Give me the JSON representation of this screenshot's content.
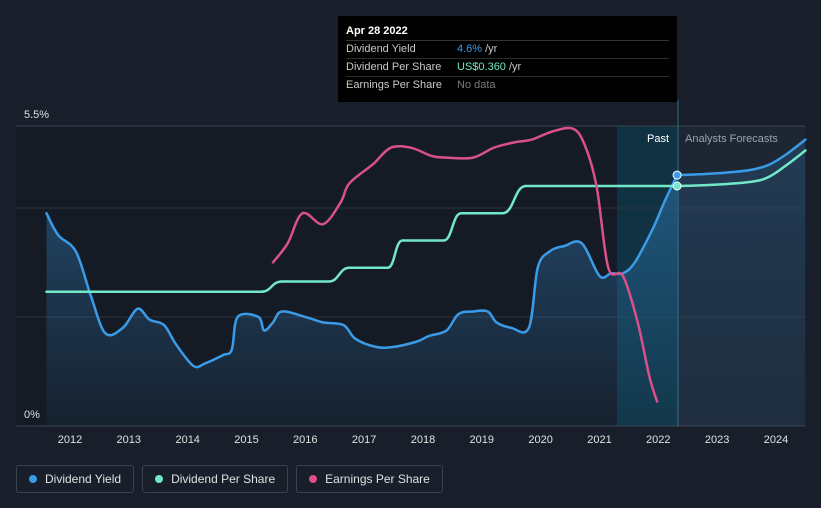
{
  "tooltip": {
    "date": "Apr 28 2022",
    "rows": [
      {
        "label": "Dividend Yield",
        "value": "4.6%",
        "unit": "/yr"
      },
      {
        "label": "Dividend Per Share",
        "value": "US$0.360",
        "unit": "/yr"
      },
      {
        "label": "Earnings Per Share",
        "value": "No data",
        "unit": ""
      }
    ]
  },
  "regions": {
    "past": "Past",
    "forecast": "Analysts Forecasts"
  },
  "legend": [
    {
      "label": "Dividend Yield",
      "color": "#3a9be8"
    },
    {
      "label": "Dividend Per Share",
      "color": "#72e8c9"
    },
    {
      "label": "Earnings Per Share",
      "color": "#d9508a"
    }
  ],
  "chart_data": {
    "type": "line",
    "y_tick_labels": [
      "5.5%",
      "0%"
    ],
    "ylim": [
      0,
      5.5
    ],
    "xlim": [
      2011.6,
      2024.5
    ],
    "x_tick_labels": [
      "2012",
      "2013",
      "2014",
      "2015",
      "2016",
      "2017",
      "2018",
      "2019",
      "2020",
      "2021",
      "2022",
      "2023",
      "2024"
    ],
    "highlight_start": 2021.3,
    "tooltip_x": 2022.32,
    "grid": true,
    "series": [
      {
        "name": "Dividend Yield",
        "color": "#3a9be8",
        "points": [
          [
            2011.6,
            3.9
          ],
          [
            2011.8,
            3.5
          ],
          [
            2012.1,
            3.2
          ],
          [
            2012.35,
            2.4
          ],
          [
            2012.6,
            1.7
          ],
          [
            2012.9,
            1.8
          ],
          [
            2013.15,
            2.15
          ],
          [
            2013.35,
            1.95
          ],
          [
            2013.6,
            1.85
          ],
          [
            2013.8,
            1.5
          ],
          [
            2014.1,
            1.1
          ],
          [
            2014.3,
            1.15
          ],
          [
            2014.6,
            1.3
          ],
          [
            2014.75,
            1.4
          ],
          [
            2014.85,
            2.0
          ],
          [
            2015.2,
            2.0
          ],
          [
            2015.3,
            1.75
          ],
          [
            2015.45,
            1.9
          ],
          [
            2015.6,
            2.1
          ],
          [
            2016.0,
            2.0
          ],
          [
            2016.3,
            1.9
          ],
          [
            2016.65,
            1.85
          ],
          [
            2016.85,
            1.6
          ],
          [
            2017.2,
            1.45
          ],
          [
            2017.5,
            1.45
          ],
          [
            2017.9,
            1.55
          ],
          [
            2018.1,
            1.65
          ],
          [
            2018.4,
            1.75
          ],
          [
            2018.6,
            2.05
          ],
          [
            2018.85,
            2.1
          ],
          [
            2019.1,
            2.1
          ],
          [
            2019.25,
            1.9
          ],
          [
            2019.5,
            1.8
          ],
          [
            2019.8,
            1.8
          ],
          [
            2019.95,
            2.9
          ],
          [
            2020.15,
            3.2
          ],
          [
            2020.4,
            3.3
          ],
          [
            2020.7,
            3.35
          ],
          [
            2021.0,
            2.75
          ],
          [
            2021.2,
            2.8
          ],
          [
            2021.4,
            2.8
          ],
          [
            2021.6,
            3.0
          ],
          [
            2021.9,
            3.6
          ],
          [
            2022.1,
            4.1
          ],
          [
            2022.32,
            4.6
          ]
        ]
      },
      {
        "name": "Dividend Yield Forecast",
        "color": "#3a9be8",
        "points": [
          [
            2022.32,
            4.6
          ],
          [
            2022.8,
            4.62
          ],
          [
            2023.2,
            4.65
          ],
          [
            2023.6,
            4.7
          ],
          [
            2023.9,
            4.8
          ],
          [
            2024.2,
            5.0
          ],
          [
            2024.5,
            5.25
          ]
        ]
      },
      {
        "name": "Dividend Per Share",
        "color": "#72e8c9",
        "points": [
          [
            2011.6,
            2.46
          ],
          [
            2015.25,
            2.46
          ],
          [
            2015.6,
            2.65
          ],
          [
            2016.4,
            2.65
          ],
          [
            2016.75,
            2.9
          ],
          [
            2017.4,
            2.9
          ],
          [
            2017.65,
            3.4
          ],
          [
            2018.35,
            3.4
          ],
          [
            2018.65,
            3.9
          ],
          [
            2019.35,
            3.9
          ],
          [
            2019.75,
            4.4
          ],
          [
            2022.32,
            4.4
          ]
        ]
      },
      {
        "name": "Dividend Per Share Forecast",
        "color": "#72e8c9",
        "points": [
          [
            2022.32,
            4.4
          ],
          [
            2022.9,
            4.42
          ],
          [
            2023.6,
            4.48
          ],
          [
            2023.9,
            4.58
          ],
          [
            2024.2,
            4.8
          ],
          [
            2024.5,
            5.05
          ]
        ]
      },
      {
        "name": "Earnings Per Share",
        "color": "#d9508a",
        "points": [
          [
            2015.45,
            3.0
          ],
          [
            2015.7,
            3.35
          ],
          [
            2015.95,
            3.9
          ],
          [
            2016.3,
            3.7
          ],
          [
            2016.6,
            4.1
          ],
          [
            2016.75,
            4.45
          ],
          [
            2017.15,
            4.8
          ],
          [
            2017.45,
            5.1
          ],
          [
            2017.8,
            5.1
          ],
          [
            2018.15,
            4.95
          ],
          [
            2018.4,
            4.92
          ],
          [
            2018.85,
            4.92
          ],
          [
            2019.2,
            5.1
          ],
          [
            2019.55,
            5.2
          ],
          [
            2019.85,
            5.25
          ],
          [
            2020.2,
            5.4
          ],
          [
            2020.55,
            5.45
          ],
          [
            2020.75,
            5.15
          ],
          [
            2020.95,
            4.4
          ],
          [
            2021.15,
            2.9
          ],
          [
            2021.4,
            2.75
          ],
          [
            2021.65,
            1.9
          ],
          [
            2021.85,
            0.9
          ],
          [
            2021.98,
            0.45
          ]
        ]
      }
    ]
  }
}
